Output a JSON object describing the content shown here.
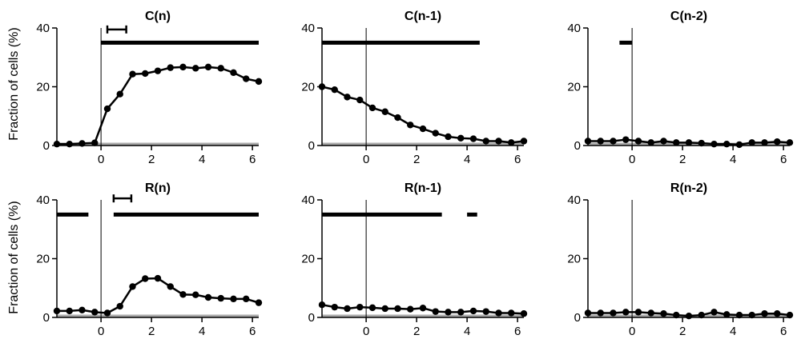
{
  "figure": {
    "ylabel": "Fraction of cells (%)",
    "baseline_color": "#aaaaaa",
    "line_color": "#000000"
  },
  "chart_data": [
    {
      "type": "line",
      "title": "C(n)",
      "xlim": [
        -1.75,
        6.25
      ],
      "ylim": [
        0,
        40
      ],
      "xticks": [
        0,
        2,
        4,
        6
      ],
      "yticks": [
        0,
        20,
        40
      ],
      "x": [
        -1.75,
        -1.25,
        -0.75,
        -0.25,
        0.25,
        0.75,
        1.25,
        1.75,
        2.25,
        2.75,
        3.25,
        3.75,
        4.25,
        4.75,
        5.25,
        5.75,
        6.25
      ],
      "y": [
        0.5,
        0.5,
        0.7,
        0.9,
        12.5,
        17.5,
        24.3,
        24.5,
        25.4,
        26.5,
        26.7,
        26.3,
        26.7,
        26.3,
        24.8,
        22.7,
        21.8
      ],
      "bars": [
        {
          "x": [
            0,
            6.25
          ],
          "y": 35
        }
      ],
      "scalebar": {
        "x": [
          0.25,
          1.0
        ],
        "y": 39.5
      }
    },
    {
      "type": "line",
      "title": "C(n-1)",
      "xlim": [
        -1.75,
        6.25
      ],
      "ylim": [
        0,
        40
      ],
      "xticks": [
        0,
        2,
        4,
        6
      ],
      "yticks": [
        0,
        20,
        40
      ],
      "x": [
        -1.75,
        -1.25,
        -0.75,
        -0.25,
        0.25,
        0.75,
        1.25,
        1.75,
        2.25,
        2.75,
        3.25,
        3.75,
        4.25,
        4.75,
        5.25,
        5.75,
        6.25
      ],
      "y": [
        20,
        19,
        16.5,
        15.5,
        12.8,
        11.5,
        9.5,
        7,
        5.7,
        4.2,
        3,
        2.5,
        2.3,
        1.5,
        1.5,
        1,
        1.5
      ],
      "bars": [
        {
          "x": [
            -1.75,
            4.5
          ],
          "y": 35
        }
      ]
    },
    {
      "type": "line",
      "title": "C(n-2)",
      "xlim": [
        -1.75,
        6.25
      ],
      "ylim": [
        0,
        40
      ],
      "xticks": [
        0,
        2,
        4,
        6
      ],
      "yticks": [
        0,
        20,
        40
      ],
      "x": [
        -1.75,
        -1.25,
        -0.75,
        -0.25,
        0.25,
        0.75,
        1.25,
        1.75,
        2.25,
        2.75,
        3.25,
        3.75,
        4.25,
        4.75,
        5.25,
        5.75,
        6.25
      ],
      "y": [
        1.5,
        1.5,
        1.5,
        2.0,
        1.5,
        1.0,
        1.5,
        1.0,
        1.0,
        0.8,
        0.5,
        0.5,
        0.3,
        1.0,
        1.0,
        1.3,
        1.0
      ],
      "bars": [
        {
          "x": [
            -0.5,
            0
          ],
          "y": 35
        }
      ]
    },
    {
      "type": "line",
      "title": "R(n)",
      "xlim": [
        -1.75,
        6.25
      ],
      "ylim": [
        0,
        40
      ],
      "xticks": [
        0,
        2,
        4,
        6
      ],
      "yticks": [
        0,
        20,
        40
      ],
      "x": [
        -1.75,
        -1.25,
        -0.75,
        -0.25,
        0.25,
        0.75,
        1.25,
        1.75,
        2.25,
        2.75,
        3.25,
        3.75,
        4.25,
        4.75,
        5.25,
        5.75,
        6.25
      ],
      "y": [
        2.2,
        2.2,
        2.5,
        1.8,
        1.5,
        3.8,
        10.5,
        13.2,
        13.3,
        10.5,
        7.8,
        7.7,
        6.8,
        6.5,
        6.3,
        6.3,
        5.0
      ],
      "bars": [
        {
          "x": [
            -1.75,
            -0.5
          ],
          "y": 35
        },
        {
          "x": [
            0.5,
            6.25
          ],
          "y": 35
        }
      ],
      "scalebar": {
        "x": [
          0.5,
          1.2
        ],
        "y": 40.5
      }
    },
    {
      "type": "line",
      "title": "R(n-1)",
      "xlim": [
        -1.75,
        6.25
      ],
      "ylim": [
        0,
        40
      ],
      "xticks": [
        0,
        2,
        4,
        6
      ],
      "yticks": [
        0,
        20,
        40
      ],
      "x": [
        -1.75,
        -1.25,
        -0.75,
        -0.25,
        0.25,
        0.75,
        1.25,
        1.75,
        2.25,
        2.75,
        3.25,
        3.75,
        4.25,
        4.75,
        5.25,
        5.75,
        6.25
      ],
      "y": [
        4.3,
        3.5,
        3,
        3.5,
        3.3,
        3,
        3,
        2.8,
        3.2,
        2,
        1.8,
        1.8,
        2.2,
        2,
        1.5,
        1.5,
        1.3
      ],
      "bars": [
        {
          "x": [
            -1.75,
            3.0
          ],
          "y": 35
        },
        {
          "x": [
            4.0,
            4.4
          ],
          "y": 35
        }
      ]
    },
    {
      "type": "line",
      "title": "R(n-2)",
      "xlim": [
        -1.75,
        6.25
      ],
      "ylim": [
        0,
        40
      ],
      "xticks": [
        0,
        2,
        4,
        6
      ],
      "yticks": [
        0,
        20,
        40
      ],
      "x": [
        -1.75,
        -1.25,
        -0.75,
        -0.25,
        0.25,
        0.75,
        1.25,
        1.75,
        2.25,
        2.75,
        3.25,
        3.75,
        4.25,
        4.75,
        5.25,
        5.75,
        6.25
      ],
      "y": [
        1.5,
        1.5,
        1.5,
        1.8,
        1.8,
        1.5,
        1.3,
        0.8,
        0.5,
        0.8,
        1.8,
        1.0,
        0.8,
        0.8,
        1.3,
        1.3,
        0.8
      ],
      "bars": []
    }
  ]
}
